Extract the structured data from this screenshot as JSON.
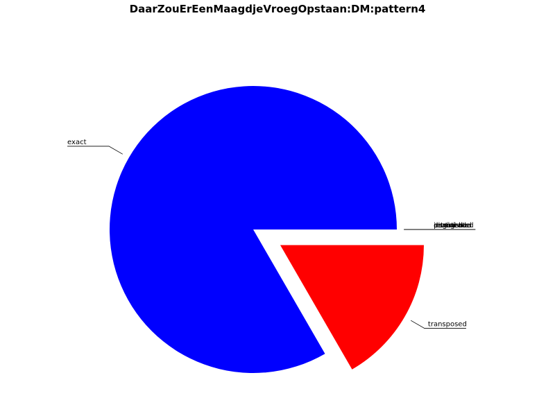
{
  "chart_data": {
    "type": "pie",
    "title": "DaarZouErEenMaagdjeVroegOpstaan:DM:pattern4",
    "slices": [
      {
        "label": "exact",
        "value": 5,
        "color": "#0000ff",
        "exploded": false
      },
      {
        "label": "transposed",
        "value": 1,
        "color": "#ff0000",
        "exploded": true
      },
      {
        "label": "inverted",
        "value": 0,
        "color": "#00ff00",
        "exploded": false
      },
      {
        "label": "retrograde",
        "value": 0,
        "color": "#00ffff",
        "exploded": false
      },
      {
        "label": "augmented",
        "value": 0,
        "color": "#ff00ff",
        "exploded": false
      },
      {
        "label": "diminished",
        "value": 0,
        "color": "#ffff00",
        "exploded": false
      },
      {
        "label": "partial",
        "value": 0,
        "color": "#000000",
        "exploded": false
      }
    ],
    "start_angle_deg": 0,
    "direction": "counterclockwise",
    "legend": "none"
  }
}
